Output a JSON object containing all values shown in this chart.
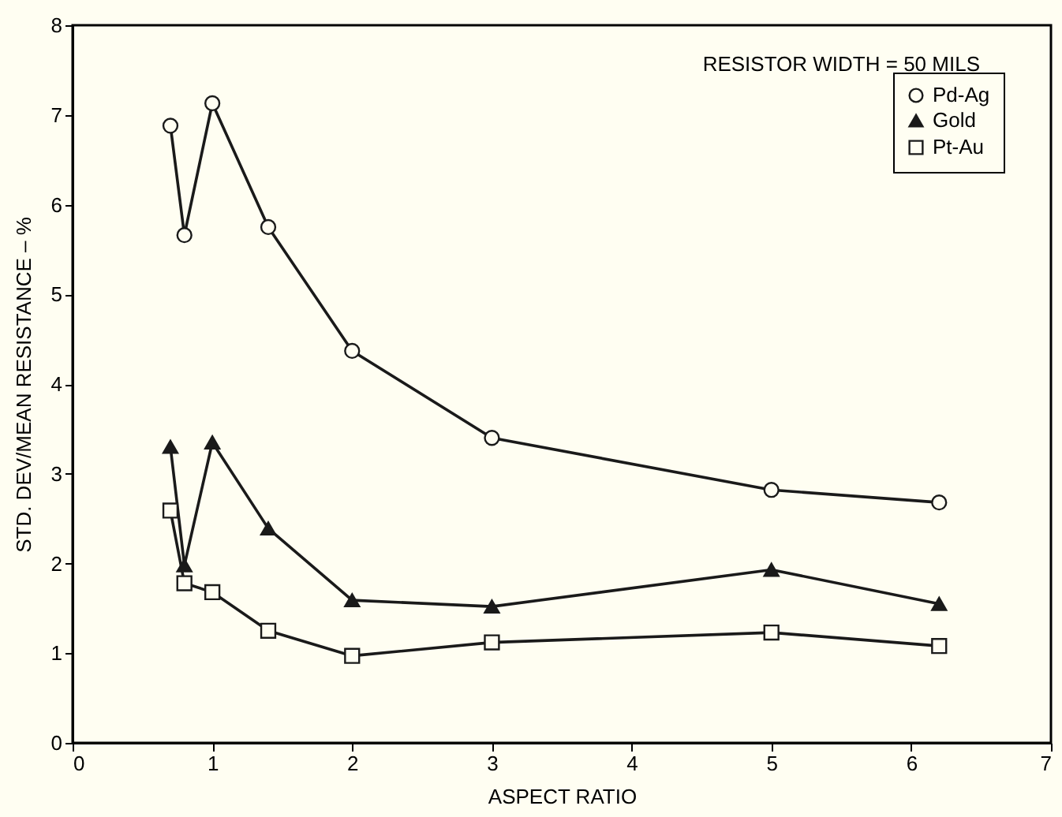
{
  "chart_data": {
    "type": "line",
    "xlabel": "ASPECT RATIO",
    "ylabel": "STD. DEV/MEAN RESISTANCE – %",
    "annotations": [
      "RESISTOR WIDTH = 50 MILS"
    ],
    "xlim": [
      0,
      7
    ],
    "xticks": [
      0,
      1,
      2,
      3,
      4,
      5,
      6,
      7
    ],
    "ylim": [
      0,
      8
    ],
    "yticks": [
      0,
      1,
      2,
      3,
      4,
      5,
      6,
      7,
      8
    ],
    "grid": false,
    "legend": "top right",
    "line_style": "solid",
    "x": [
      0.7,
      0.8,
      1.0,
      1.4,
      2.0,
      3.0,
      5.0,
      6.2
    ],
    "series": [
      {
        "name": "Pd-Ag",
        "color": "#1a1a1a",
        "marker": "circle",
        "values": [
          6.88,
          5.66,
          7.13,
          5.75,
          4.37,
          3.4,
          2.82,
          2.68
        ]
      },
      {
        "name": "Gold",
        "color": "#1a1a1a",
        "marker": "triangle",
        "values": [
          3.3,
          1.98,
          3.35,
          2.39,
          1.59,
          1.52,
          1.93,
          1.55
        ]
      },
      {
        "name": "Pt-Au",
        "color": "#1a1a1a",
        "marker": "square",
        "values": [
          2.59,
          1.78,
          1.68,
          1.25,
          0.97,
          1.12,
          1.23,
          1.08
        ]
      }
    ]
  }
}
